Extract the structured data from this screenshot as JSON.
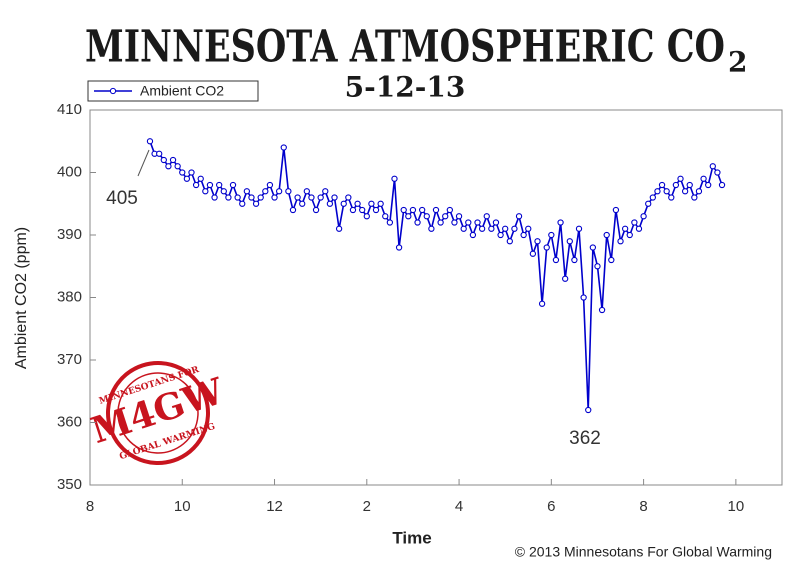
{
  "chart_data": {
    "type": "line",
    "title": "MINNESOTA ATMOSPHERIC CO",
    "title_subscript": "2",
    "subtitle": "5-12-13",
    "x_label": "Time",
    "y_label": "Ambient CO2 (ppm)",
    "annotations": [
      "405",
      "362"
    ],
    "copyright": "© 2013 Minnesotans For Global Warming",
    "logo": {
      "top": "MINNESOTANS FOR",
      "middle": "M4GW",
      "bottom": "GLOBAL WARMING"
    },
    "legend": "top-left",
    "xlim": [
      8,
      23
    ],
    "xticks": [
      8,
      10,
      12,
      {
        "value": 14,
        "label": "2"
      },
      {
        "value": 16,
        "label": "4"
      },
      {
        "value": 18,
        "label": "6"
      },
      {
        "value": 20,
        "label": "8"
      },
      {
        "value": 22,
        "label": "10"
      }
    ],
    "ylim": [
      350,
      410
    ],
    "yticks": [
      350,
      360,
      370,
      380,
      390,
      400,
      410
    ],
    "x": [
      9.3,
      9.4,
      9.5,
      9.6,
      9.7,
      9.8,
      9.9,
      10.0,
      10.1,
      10.2,
      10.3,
      10.4,
      10.5,
      10.6,
      10.7,
      10.8,
      10.9,
      11.0,
      11.1,
      11.2,
      11.3,
      11.4,
      11.5,
      11.6,
      11.7,
      11.8,
      11.9,
      12.0,
      12.1,
      12.2,
      12.3,
      12.4,
      12.5,
      12.6,
      12.7,
      12.8,
      12.9,
      13.0,
      13.1,
      13.2,
      13.3,
      13.4,
      13.5,
      13.6,
      13.7,
      13.8,
      13.9,
      14.0,
      14.1,
      14.2,
      14.3,
      14.4,
      14.5,
      14.6,
      14.7,
      14.8,
      14.9,
      15.0,
      15.1,
      15.2,
      15.3,
      15.4,
      15.5,
      15.6,
      15.7,
      15.8,
      15.9,
      16.0,
      16.1,
      16.2,
      16.3,
      16.4,
      16.5,
      16.6,
      16.7,
      16.8,
      16.9,
      17.0,
      17.1,
      17.2,
      17.3,
      17.4,
      17.5,
      17.6,
      17.7,
      17.8,
      17.9,
      18.0,
      18.1,
      18.2,
      18.3,
      18.4,
      18.5,
      18.6,
      18.7,
      18.8,
      18.9,
      19.0,
      19.1,
      19.2,
      19.3,
      19.4,
      19.5,
      19.6,
      19.7,
      19.8,
      19.9,
      20.0,
      20.1,
      20.2,
      20.3,
      20.4,
      20.5,
      20.6,
      20.7,
      20.8,
      20.9,
      21.0,
      21.1,
      21.2,
      21.3,
      21.4,
      21.5,
      21.6,
      21.7
    ],
    "series": [
      {
        "name": "Ambient CO2",
        "color": "#0000cc",
        "values": [
          405,
          403,
          403,
          402,
          401,
          402,
          401,
          400,
          399,
          400,
          398,
          399,
          397,
          398,
          396,
          398,
          397,
          396,
          398,
          396,
          395,
          397,
          396,
          395,
          396,
          397,
          398,
          396,
          397,
          404,
          397,
          394,
          396,
          395,
          397,
          396,
          394,
          396,
          397,
          395,
          396,
          391,
          395,
          396,
          394,
          395,
          394,
          393,
          395,
          394,
          395,
          393,
          392,
          399,
          388,
          394,
          393,
          394,
          392,
          394,
          393,
          391,
          394,
          392,
          393,
          394,
          392,
          393,
          391,
          392,
          390,
          392,
          391,
          393,
          391,
          392,
          390,
          391,
          389,
          391,
          393,
          390,
          391,
          387,
          389,
          379,
          388,
          390,
          386,
          392,
          383,
          389,
          386,
          391,
          380,
          362,
          388,
          385,
          378,
          390,
          386,
          394,
          389,
          391,
          390,
          392,
          391,
          393,
          395,
          396,
          397,
          398,
          397,
          396,
          398,
          399,
          397,
          398,
          396,
          397,
          399,
          398,
          401,
          400,
          398
        ]
      }
    ]
  }
}
